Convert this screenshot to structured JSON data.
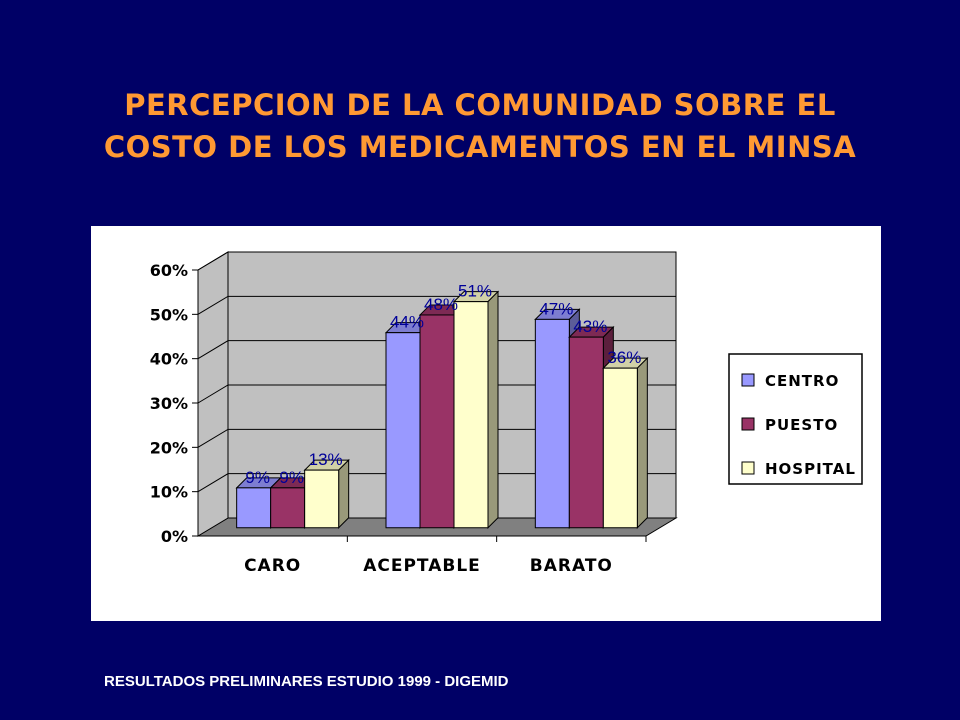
{
  "title": {
    "line1": "PERCEPCION DE LA COMUNIDAD SOBRE EL",
    "line2": "COSTO DE LOS MEDICAMENTOS EN EL MINSA"
  },
  "footer": "RESULTADOS PRELIMINARES ESTUDIO 1999 - DIGEMID",
  "colors": {
    "background": "#000066",
    "title": "#FF9933",
    "data_label": "#000099",
    "wall": "#C0C0C0",
    "floor": "#808080"
  },
  "chart_data": {
    "type": "bar",
    "variant": "3d-clustered",
    "categories": [
      "CARO",
      "ACEPTABLE",
      "BARATO"
    ],
    "series": [
      {
        "name": "CENTRO",
        "color": "#9999FF",
        "values": [
          9,
          44,
          47
        ],
        "labels": [
          "9%",
          "44%",
          "47%"
        ]
      },
      {
        "name": "PUESTO",
        "color": "#993366",
        "values": [
          9,
          48,
          43
        ],
        "labels": [
          "9%",
          "48%",
          "43%"
        ]
      },
      {
        "name": "HOSPITAL",
        "color": "#FFFFCC",
        "values": [
          13,
          51,
          36
        ],
        "labels": [
          "13%",
          "51%",
          "36%"
        ]
      }
    ],
    "ylim": [
      0,
      60
    ],
    "yticks": [
      0,
      10,
      20,
      30,
      40,
      50,
      60
    ],
    "ytick_labels": [
      "0%",
      "10%",
      "20%",
      "30%",
      "40%",
      "50%",
      "60%"
    ],
    "grid": true,
    "legend_position": "right"
  }
}
